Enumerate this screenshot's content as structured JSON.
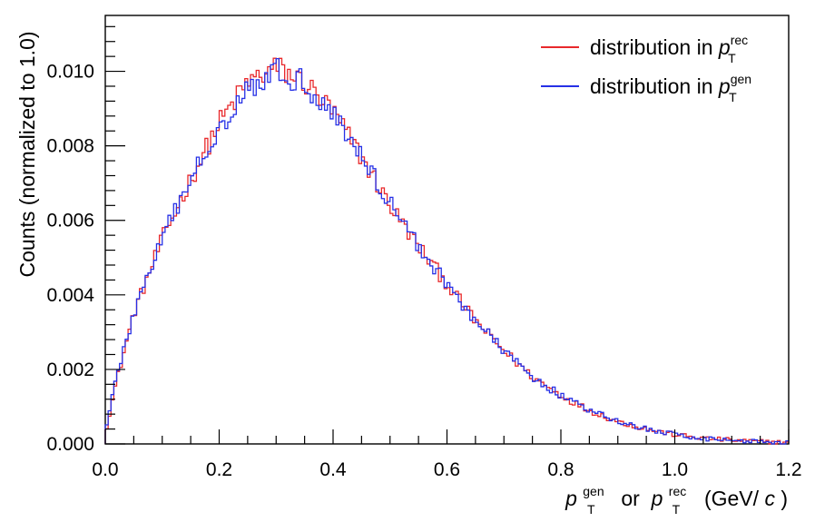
{
  "chart_data": {
    "type": "histogram",
    "xlabel_parts": {
      "p1": "p",
      "sub1": "T",
      "sup1": "gen",
      "mid": " or ",
      "p2": "p",
      "sub2": "T",
      "sup2": "rec",
      "units_pre": " (GeV/",
      "units_c": "c",
      "units_post": ")"
    },
    "ylabel": "Counts (normalized to 1.0)",
    "xlim": [
      0.0,
      1.2
    ],
    "ylim": [
      0.0,
      0.0115
    ],
    "x_ticks": [
      "0.0",
      "0.2",
      "0.4",
      "0.6",
      "0.8",
      "1.0",
      "1.2"
    ],
    "y_ticks": [
      "0.000",
      "0.002",
      "0.004",
      "0.006",
      "0.008",
      "0.010"
    ],
    "grid": false,
    "legend_position": "top-right",
    "bin_width": 0.005,
    "series": [
      {
        "name_prefix": "distribution in ",
        "name_p": "p",
        "name_sub": "T",
        "name_sup": "rec",
        "color": "#e8282b",
        "envelope_x": [
          0.0,
          0.02,
          0.05,
          0.1,
          0.15,
          0.2,
          0.25,
          0.3,
          0.35,
          0.4,
          0.45,
          0.5,
          0.55,
          0.6,
          0.65,
          0.7,
          0.75,
          0.8,
          0.85,
          0.9,
          0.95,
          1.0,
          1.05,
          1.1,
          1.15,
          1.2
        ],
        "envelope_y": [
          0.0003,
          0.0017,
          0.0035,
          0.0055,
          0.0071,
          0.0086,
          0.0097,
          0.0101,
          0.0097,
          0.0089,
          0.0077,
          0.0064,
          0.0053,
          0.0043,
          0.0033,
          0.0025,
          0.0018,
          0.0013,
          0.0009,
          0.0006,
          0.0004,
          0.00025,
          0.00015,
          0.0001,
          6e-05,
          4e-05
        ]
      },
      {
        "name_prefix": "distribution in ",
        "name_p": "p",
        "name_sub": "T",
        "name_sup": "gen",
        "color": "#2630e6",
        "envelope_x": [
          0.0,
          0.02,
          0.05,
          0.1,
          0.15,
          0.2,
          0.25,
          0.3,
          0.35,
          0.4,
          0.45,
          0.5,
          0.55,
          0.6,
          0.65,
          0.7,
          0.75,
          0.8,
          0.85,
          0.9,
          0.95,
          1.0,
          1.05,
          1.1,
          1.15,
          1.2
        ],
        "envelope_y": [
          0.0004,
          0.0018,
          0.0035,
          0.0055,
          0.0071,
          0.0085,
          0.0096,
          0.01,
          0.0097,
          0.0089,
          0.0077,
          0.0065,
          0.0053,
          0.0043,
          0.0033,
          0.0025,
          0.0018,
          0.0013,
          0.0009,
          0.0006,
          0.0004,
          0.00025,
          0.00015,
          0.0001,
          6e-05,
          4e-05
        ]
      }
    ]
  }
}
